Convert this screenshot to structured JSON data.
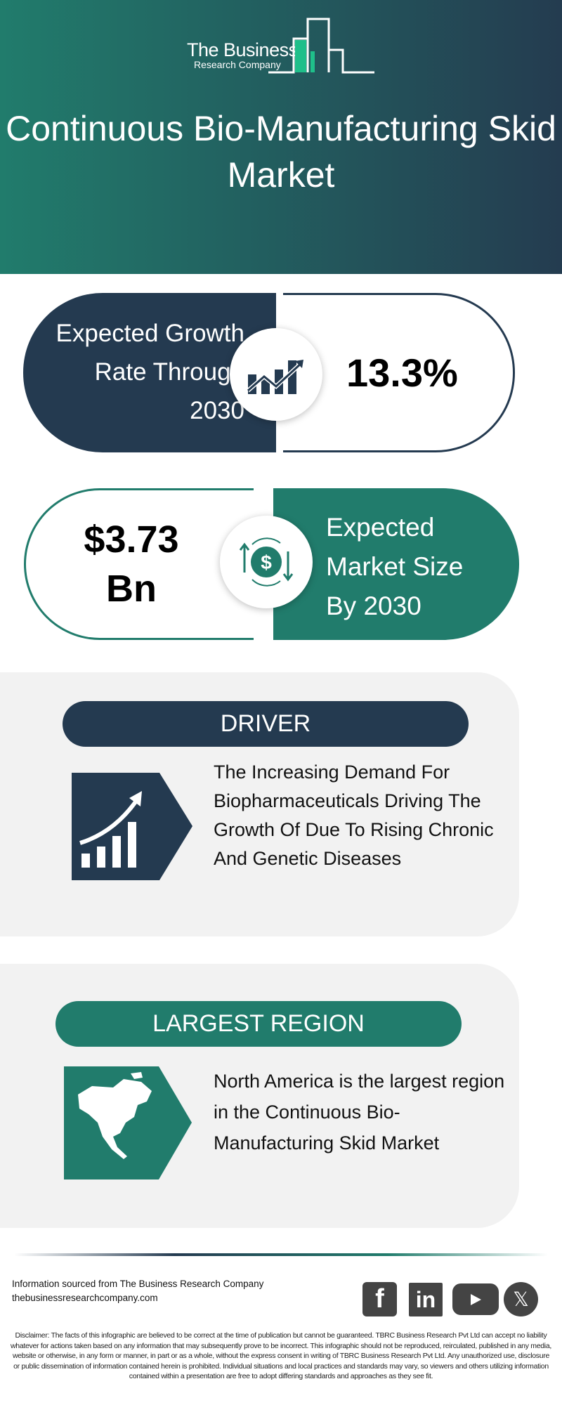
{
  "header": {
    "logo_line1": "The Business",
    "logo_line2": "Research Company",
    "title": "Continuous Bio-Manufacturing Skid Market"
  },
  "growth": {
    "label": "Expected Growth Rate Through 2030",
    "value": "13.3%",
    "icon": "growth-chart-icon"
  },
  "market_size": {
    "value": "$3.73 Bn",
    "label": "Expected Market Size By 2030",
    "icon": "dollar-exchange-icon"
  },
  "driver": {
    "heading": "DRIVER",
    "text": "The Increasing Demand For Biopharmaceuticals Driving The Growth Of Due To Rising Chronic And Genetic Diseases",
    "icon": "rising-bar-chart-icon"
  },
  "region": {
    "heading": "LARGEST REGION",
    "text": "North America is the largest region in the Continuous Bio-Manufacturing Skid Market",
    "icon": "north-america-map-icon"
  },
  "footer": {
    "source": "Information sourced from The Business Research Company",
    "website": "thebusinessresearchcompany.com",
    "social": [
      "facebook",
      "linkedin",
      "youtube",
      "x"
    ],
    "disclaimer": "Disclaimer: The facts of this infographic are believed to be correct at the time of publication but cannot be guaranteed. TBRC Business Research Pvt Ltd can accept no liability whatever for actions taken based on any information that may subsequently prove to be incorrect. This infographic should not be reproduced, reirculated, published in any media, website or otherwise, in any form or manner, in part or as a whole, without the express consent in writing of TBRC Business Research Pvt Ltd. Any unauthorized use, disclosure or public dissemination of information contained herein is prohibited. Individual situations and local practices and standards may vary, so viewers and others utilizing information contained within a presentation are free to adopt differing standards and approaches as they see fit."
  },
  "colors": {
    "teal": "#217c6c",
    "navy": "#243a50",
    "card": "#f2f2f2"
  }
}
